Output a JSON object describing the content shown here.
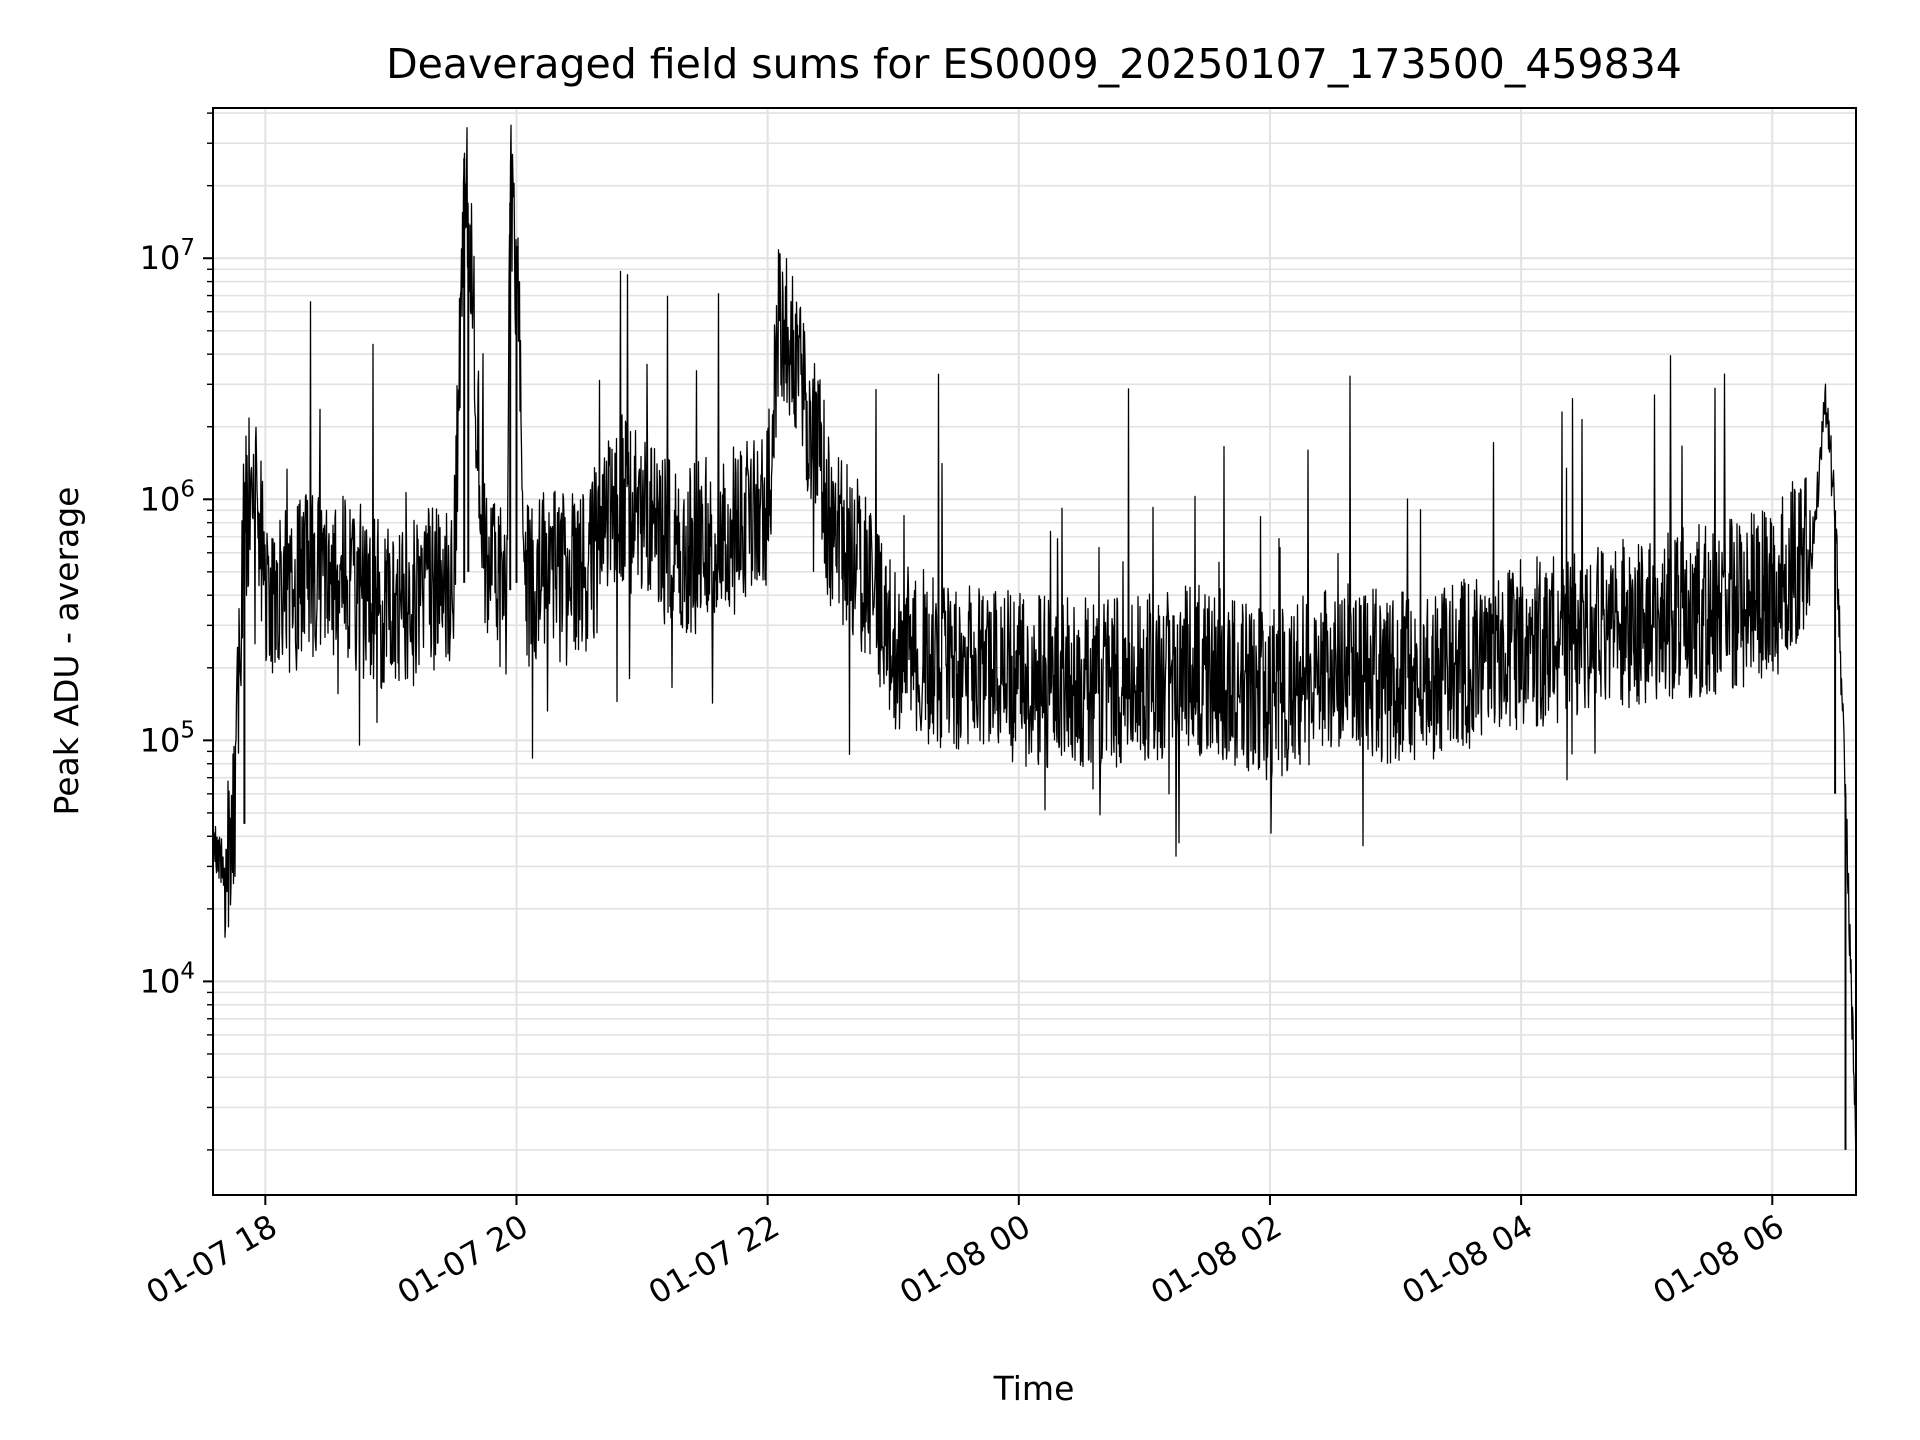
{
  "chart_data": {
    "type": "line",
    "title": "Deaveraged field sums for ES0009_20250107_173500_459834",
    "xlabel": "Time",
    "ylabel": "Peak ADU - average",
    "xlim": [
      "2025-01-07T17:35",
      "2025-01-08T06:40"
    ],
    "ylim": [
      1300,
      42000000
    ],
    "yscale": "log",
    "grid": true,
    "line_color": "#000000",
    "x_ticks": [
      {
        "value": "2025-01-07T18:00",
        "label": "01-07 18"
      },
      {
        "value": "2025-01-07T20:00",
        "label": "01-07 20"
      },
      {
        "value": "2025-01-07T22:00",
        "label": "01-07 22"
      },
      {
        "value": "2025-01-08T00:00",
        "label": "01-08 00"
      },
      {
        "value": "2025-01-08T02:00",
        "label": "01-08 02"
      },
      {
        "value": "2025-01-08T04:00",
        "label": "01-08 04"
      },
      {
        "value": "2025-01-08T06:00",
        "label": "01-08 06"
      }
    ],
    "y_ticks": [
      {
        "value": 10000,
        "base": "10",
        "exp": "4"
      },
      {
        "value": 100000,
        "base": "10",
        "exp": "5"
      },
      {
        "value": 1000000,
        "base": "10",
        "exp": "6"
      },
      {
        "value": 10000000,
        "base": "10",
        "exp": "7"
      }
    ],
    "series": [
      {
        "x": [
          "2025-01-07T17:35",
          "2025-01-07T17:40",
          "2025-01-07T17:45",
          "2025-01-07T17:50",
          "2025-01-07T17:55",
          "2025-01-07T18:00",
          "2025-01-07T18:15",
          "2025-01-07T18:30",
          "2025-01-07T18:50",
          "2025-01-07T19:00",
          "2025-01-07T19:20",
          "2025-01-07T19:30",
          "2025-01-07T19:35",
          "2025-01-07T19:37",
          "2025-01-07T19:45",
          "2025-01-07T19:55",
          "2025-01-07T19:57",
          "2025-01-07T20:00",
          "2025-01-07T20:05",
          "2025-01-07T20:15",
          "2025-01-07T20:30",
          "2025-01-07T20:50",
          "2025-01-07T21:00",
          "2025-01-07T21:20",
          "2025-01-07T21:40",
          "2025-01-07T22:00",
          "2025-01-07T22:05",
          "2025-01-07T22:15",
          "2025-01-07T22:30",
          "2025-01-07T22:45",
          "2025-01-07T23:00",
          "2025-01-07T23:30",
          "2025-01-08T00:00",
          "2025-01-08T00:30",
          "2025-01-08T01:00",
          "2025-01-08T01:30",
          "2025-01-08T02:00",
          "2025-01-08T02:30",
          "2025-01-08T03:00",
          "2025-01-08T03:30",
          "2025-01-08T04:00",
          "2025-01-08T04:30",
          "2025-01-08T05:00",
          "2025-01-08T05:30",
          "2025-01-08T06:00",
          "2025-01-08T06:20",
          "2025-01-08T06:25",
          "2025-01-08T06:30",
          "2025-01-08T06:35",
          "2025-01-08T06:40"
        ],
        "y": [
          35000,
          30000,
          45000,
          800000,
          1200000,
          400000,
          450000,
          500000,
          400000,
          350000,
          420000,
          450000,
          26000000,
          14000000,
          500000,
          420000,
          17000000,
          8500000,
          450000,
          500000,
          450000,
          1000000,
          800000,
          600000,
          700000,
          900000,
          5200000,
          3700000,
          800000,
          500000,
          250000,
          200000,
          180000,
          170000,
          180000,
          200000,
          150000,
          200000,
          180000,
          200000,
          250000,
          280000,
          320000,
          350000,
          400000,
          700000,
          2800000,
          900000,
          60000,
          2000
        ]
      }
    ]
  }
}
